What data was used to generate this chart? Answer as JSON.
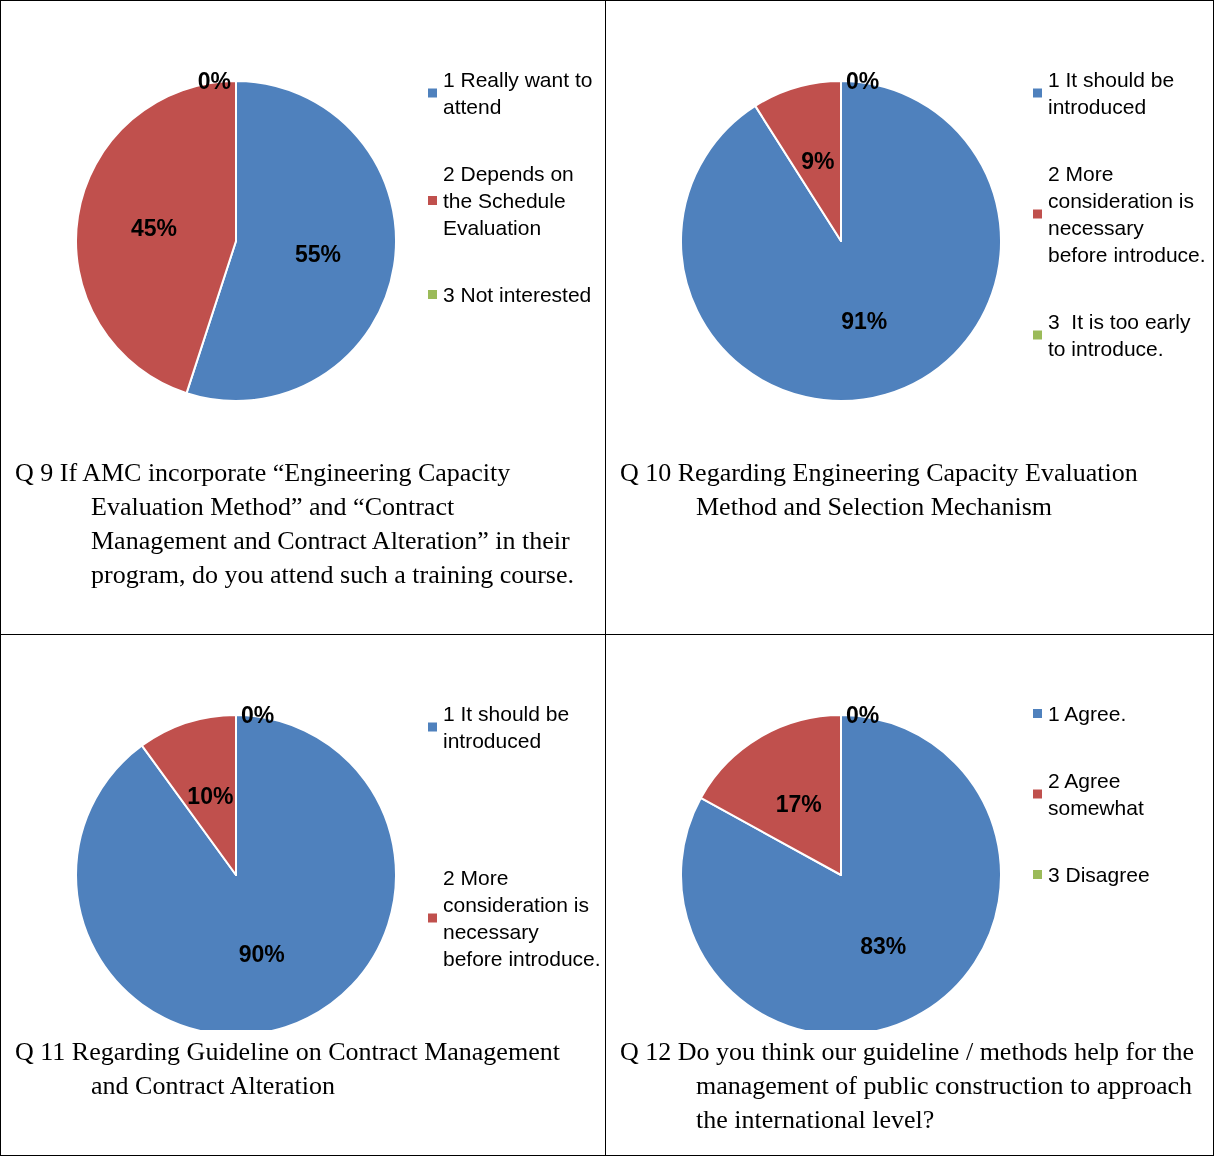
{
  "chart_data": [
    {
      "type": "pie",
      "title": "Q 9 If AMC incorporate “Engineering Capacity Evaluation Method” and “Contract Management and Contract Alteration” in their program, do you attend such a training course.",
      "categories": [
        "1 Really want to attend",
        "2 Depends on the Schedule Evaluation",
        "3 Not interested"
      ],
      "values": [
        55,
        45,
        0
      ],
      "colors": [
        "#4f81bd",
        "#c0504d",
        "#9bbb59"
      ],
      "value_labels": [
        "55%",
        "45%",
        "0%"
      ],
      "legend": "right"
    },
    {
      "type": "pie",
      "title": "Q 10 Regarding Engineering Capacity Evaluation Method and Selection Mechanism",
      "categories": [
        "1 It should be introduced",
        "2 More consideration is necessary before introduce.",
        "3  It is too early to introduce."
      ],
      "values": [
        91,
        9,
        0
      ],
      "colors": [
        "#4f81bd",
        "#c0504d",
        "#9bbb59"
      ],
      "value_labels": [
        "91%",
        "9%",
        "0%"
      ],
      "legend": "right"
    },
    {
      "type": "pie",
      "title": "Q 11 Regarding Guideline on Contract Management and Contract Alteration",
      "categories": [
        "1 It should be introduced",
        "2 More consideration is necessary before introduce.",
        null
      ],
      "values": [
        90,
        10,
        0
      ],
      "colors": [
        "#4f81bd",
        "#c0504d",
        "#9bbb59"
      ],
      "value_labels": [
        "90%",
        "10%",
        "0%"
      ],
      "legend": "right"
    },
    {
      "type": "pie",
      "title": "Q 12 Do you think our guideline / methods help for the management of public construction to approach the international level?",
      "categories": [
        "1 Agree.",
        "2 Agree somewhat",
        "3 Disagree"
      ],
      "values": [
        83,
        17,
        0
      ],
      "colors": [
        "#4f81bd",
        "#c0504d",
        "#9bbb59"
      ],
      "value_labels": [
        "83%",
        "17%",
        "0%"
      ],
      "legend": "right"
    }
  ]
}
